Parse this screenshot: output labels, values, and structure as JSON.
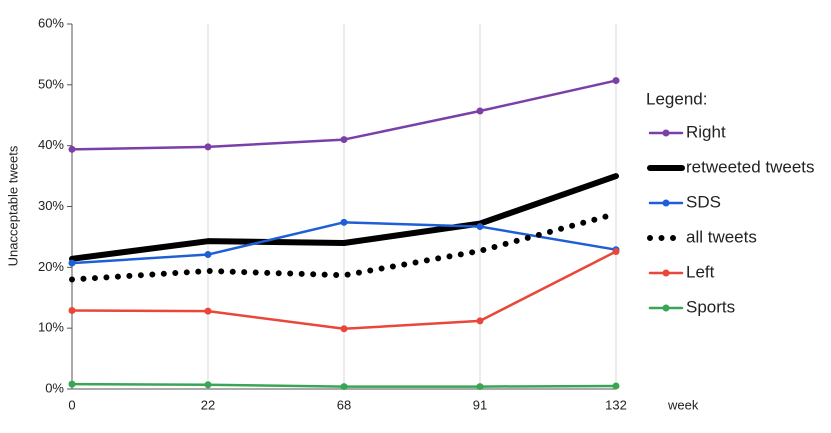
{
  "chart_data": {
    "type": "line",
    "x_label": "week",
    "y_label": "Unacceptable tweets",
    "legend_title": "Legend:",
    "categories": [
      "0",
      "22",
      "68",
      "91",
      "132"
    ],
    "ylim": [
      0,
      60
    ],
    "yticks": [
      {
        "value": 0,
        "label": "0%"
      },
      {
        "value": 10,
        "label": "10%"
      },
      {
        "value": 20,
        "label": "20%"
      },
      {
        "value": 30,
        "label": "30%"
      },
      {
        "value": 40,
        "label": "40%"
      },
      {
        "value": 50,
        "label": "50%"
      },
      {
        "value": 60,
        "label": "60%"
      }
    ],
    "grid": "vertical",
    "legend": "right",
    "series": [
      {
        "name": "Right",
        "color": "#7b3fa8",
        "line_style": "solid",
        "values": [
          39.4,
          39.8,
          41.0,
          45.7,
          50.7
        ]
      },
      {
        "name": "retweeted tweets",
        "color": "#000000",
        "line_style": "thick",
        "values": [
          21.4,
          24.3,
          24.0,
          27.2,
          35.0
        ]
      },
      {
        "name": "SDS",
        "color": "#1f5fd6",
        "line_style": "solid",
        "values": [
          20.7,
          22.1,
          27.4,
          26.7,
          22.9
        ]
      },
      {
        "name": "all tweets",
        "color": "#000000",
        "line_style": "dotted",
        "values": [
          18.0,
          19.4,
          18.7,
          22.7,
          28.8
        ]
      },
      {
        "name": "Left",
        "color": "#e8473a",
        "line_style": "solid",
        "values": [
          12.9,
          12.8,
          9.9,
          11.2,
          22.6
        ]
      },
      {
        "name": "Sports",
        "color": "#3aa655",
        "line_style": "solid",
        "values": [
          0.8,
          0.7,
          0.4,
          0.4,
          0.5
        ]
      }
    ]
  }
}
